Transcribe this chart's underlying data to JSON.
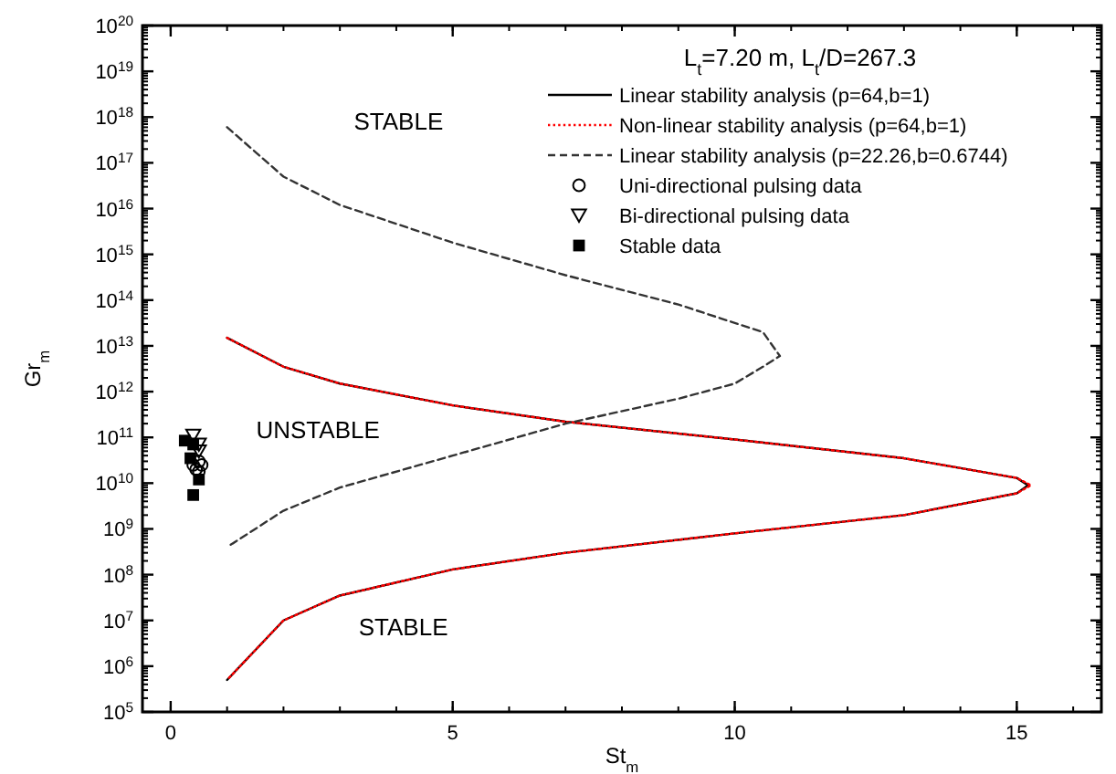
{
  "chart_data": {
    "type": "line",
    "title": "L$_{t}$=7.20 m, L$_{t}$/D=267.3",
    "xlabel": "St$_{m}$",
    "ylabel": "Gr$_{m}$",
    "log": "y",
    "xlim": [
      -0.5,
      16.5
    ],
    "xticks": [
      0,
      5,
      10,
      15
    ],
    "ylim": [
      100000.0,
      1e+20
    ],
    "yticks": [
      {
        "value": 100000.0,
        "label": "10$^{5}$"
      },
      {
        "value": 1000000.0,
        "label": "10$^{6}$"
      },
      {
        "value": 10000000.0,
        "label": "10$^{7}$"
      },
      {
        "value": 100000000.0,
        "label": "10$^{8}$"
      },
      {
        "value": 1000000000.0,
        "label": "10$^{9}$"
      },
      {
        "value": 10000000000.0,
        "label": "10$^{10}$"
      },
      {
        "value": 100000000000.0,
        "label": "10$^{11}$"
      },
      {
        "value": 1000000000000.0,
        "label": "10$^{12}$"
      },
      {
        "value": 10000000000000.0,
        "label": "10$^{13}$"
      },
      {
        "value": 100000000000000.0,
        "label": "10$^{14}$"
      },
      {
        "value": 1000000000000000.0,
        "label": "10$^{15}$"
      },
      {
        "value": 1e+16,
        "label": "10$^{16}$"
      },
      {
        "value": 1e+17,
        "label": "10$^{17}$"
      },
      {
        "value": 1e+18,
        "label": "10$^{18}$"
      },
      {
        "value": 1e+19,
        "label": "10$^{19}$"
      },
      {
        "value": 1e+20,
        "label": "10$^{20}$"
      }
    ],
    "grid": false,
    "legend": "top right",
    "annotations": [
      "STABLE",
      "UNSTABLE",
      "STABLE"
    ],
    "series": [
      {
        "name": "Linear stability analysis (p=64,b=1)",
        "color": "#000000",
        "line_style": "solid",
        "marker": "none",
        "x": [
          1,
          2,
          3,
          5,
          7,
          10,
          13,
          15,
          15.2,
          15,
          13,
          10,
          7,
          5,
          3,
          2,
          1
        ],
        "values": [
          15000000000000.0,
          3500000000000.0,
          1500000000000.0,
          500000000000.0,
          220000000000.0,
          90000000000.0,
          35000000000.0,
          13000000000.0,
          9000000000.0,
          6000000000.0,
          2000000000.0,
          800000000.0,
          300000000.0,
          130000000.0,
          35000000.0,
          10000000.0,
          500000.0
        ]
      },
      {
        "name": "Non-linear stability analysis (p=64,b=1)",
        "color": "#ff0000",
        "line_style": "dotted",
        "marker": "none",
        "x": [
          1,
          2,
          3,
          5,
          7,
          10,
          13,
          15,
          15.25,
          15,
          13,
          10,
          7,
          5,
          3,
          2,
          1
        ],
        "values": [
          15000000000000.0,
          3500000000000.0,
          1500000000000.0,
          500000000000.0,
          220000000000.0,
          90000000000.0,
          35000000000.0,
          13000000000.0,
          9000000000.0,
          6000000000.0,
          2000000000.0,
          800000000.0,
          300000000.0,
          130000000.0,
          35000000.0,
          10000000.0,
          500000.0
        ]
      },
      {
        "name": "Linear stability analysis (p=22.26,b=0.6744)",
        "color": "#333333",
        "line_style": "dashed",
        "marker": "none",
        "x": [
          1,
          2,
          3,
          5,
          7,
          9,
          10.5,
          10.8,
          10.5,
          10,
          9,
          7,
          5,
          3,
          2,
          1
        ],
        "values": [
          6e+17,
          5e+16,
          1.2e+16,
          1800000000000000.0,
          350000000000000.0,
          80000000000000.0,
          20000000000000.0,
          6000000000000.0,
          3500000000000.0,
          1500000000000.0,
          700000000000.0,
          200000000000.0,
          40000000000.0,
          8000000000.0,
          2500000000.0,
          400000000.0
        ]
      },
      {
        "name": "Uni-directional pulsing data",
        "type": "scatter",
        "color": "#000000",
        "marker": "circle",
        "x": [
          0.45,
          0.5,
          0.55,
          0.5,
          0.4
        ],
        "values": [
          20000000000.0,
          30000000000.0,
          25000000000.0,
          18000000000.0,
          25000000000.0
        ]
      },
      {
        "name": "Bi-directional pulsing data",
        "type": "scatter",
        "color": "#000000",
        "marker": "triangle",
        "x": [
          0.4,
          0.5,
          0.5
        ],
        "values": [
          110000000000.0,
          70000000000.0,
          50000000000.0
        ]
      },
      {
        "name": "Stable data",
        "type": "scatter",
        "color": "#000000",
        "marker": "square",
        "x": [
          0.25,
          0.35,
          0.4,
          0.5,
          0.4
        ],
        "values": [
          85000000000.0,
          35000000000.0,
          5500000000.0,
          12000000000.0,
          70000000000.0
        ]
      }
    ]
  }
}
